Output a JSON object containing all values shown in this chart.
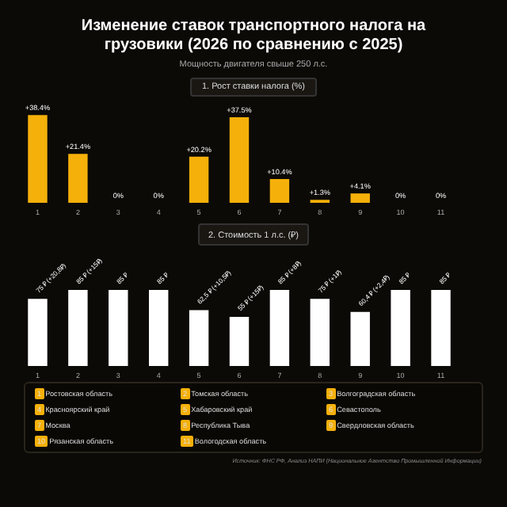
{
  "chart_data": [
    {
      "type": "other",
      "title": "Изменение ставок транспортного налога на грузовики (2026 по сравнению с 2025)",
      "subtitle": "Мощность двигателя свыше 250 л.с."
    },
    {
      "type": "bar",
      "title": "1. Рост ставки налога (%)",
      "categories": [
        "1",
        "2",
        "3",
        "4",
        "5",
        "6",
        "7",
        "8",
        "9",
        "10",
        "11"
      ],
      "color": "#f5b00a",
      "values": [
        38.4,
        21.4,
        0,
        0,
        20.2,
        37.5,
        10.4,
        1.3,
        4.1,
        0,
        0
      ],
      "value_labels": [
        "+38.4%",
        "+21.4%",
        "0%",
        "0%",
        "+20.2%",
        "+37.5%",
        "+10.4%",
        "+1.3%",
        "+4.1%",
        "0%",
        "0%"
      ]
    },
    {
      "type": "bar",
      "title": "2. Стоимость 1 л.с. (₽)",
      "categories": [
        "1",
        "2",
        "3",
        "4",
        "5",
        "6",
        "7",
        "8",
        "9",
        "10",
        "11"
      ],
      "color": "#ffffff",
      "values": [
        75,
        85,
        85,
        85,
        62.5,
        55,
        85,
        75,
        60.4,
        85,
        85
      ],
      "value_labels": [
        "75 ₽ (+20,8₽)",
        "85 ₽ (+15₽)",
        "85 ₽",
        "85 ₽",
        "62,5 ₽ (+10,5₽)",
        "55 ₽ (+15₽)",
        "85 ₽ (+8₽)",
        "75 ₽ (+1₽)",
        "60,4 ₽ (+2,4₽)",
        "85 ₽",
        "85 ₽"
      ]
    },
    {
      "type": "other",
      "annotations": [
        "1 Ростовская область",
        "2 Томская область",
        "3 Волгоградская область",
        "4 Красноярский край",
        "5 Хабаровский край",
        "6 Севастополь",
        "7 Москва",
        "8 Республика Тыва",
        "9 Свердловская область",
        "10 Рязанская область",
        "11 Вологодская область",
        "Источник: ФНС РФ, Анализ НАПИ (Национальное Агентство Промышленной Информации)"
      ]
    }
  ]
}
